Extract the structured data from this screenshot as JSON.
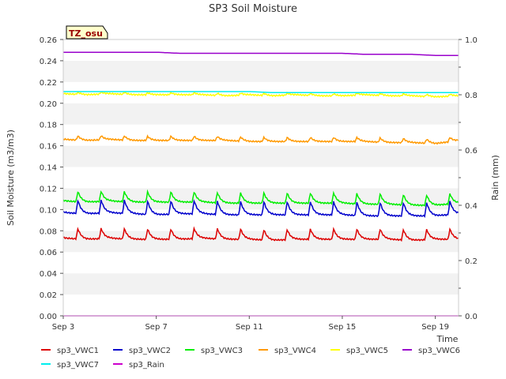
{
  "chart_data": {
    "type": "line",
    "title": "SP3 Soil Moisture",
    "xlabel": "Time",
    "ylabel": "Soil Moisture (m3/m3)",
    "y2label": "Rain (mm)",
    "annotation": "TZ_osu",
    "x_range_days": [
      0,
      17
    ],
    "x_tick_labels": [
      "Sep 3",
      "Sep 7",
      "Sep 11",
      "Sep 15",
      "Sep 19"
    ],
    "x_tick_days": [
      0,
      4,
      8,
      12,
      16
    ],
    "ylim": [
      0,
      0.26
    ],
    "y_ticks": [
      "0.00",
      "0.02",
      "0.04",
      "0.06",
      "0.08",
      "0.10",
      "0.12",
      "0.14",
      "0.16",
      "0.18",
      "0.20",
      "0.22",
      "0.24",
      "0.26"
    ],
    "y2lim": [
      0,
      1.0
    ],
    "y2_ticks": [
      "0.0",
      "0.2",
      "0.4",
      "0.6",
      "0.8",
      "1.0"
    ],
    "grid": "horizontal bands",
    "legend_position": "bottom",
    "series": [
      {
        "name": "sp3_VWC1",
        "color": "#dd0000",
        "axis": "left",
        "values": [
          0.073,
          0.072,
          0.073,
          0.072,
          0.072,
          0.072,
          0.073,
          0.072,
          0.072,
          0.071,
          0.072,
          0.072,
          0.072,
          0.072,
          0.072,
          0.071,
          0.072,
          0.072
        ],
        "daily_peak": 0.01
      },
      {
        "name": "sp3_VWC2",
        "color": "#0000cc",
        "axis": "left",
        "values": [
          0.097,
          0.096,
          0.097,
          0.096,
          0.095,
          0.096,
          0.096,
          0.095,
          0.095,
          0.095,
          0.095,
          0.095,
          0.095,
          0.094,
          0.094,
          0.094,
          0.094,
          0.096
        ],
        "daily_peak": 0.013
      },
      {
        "name": "sp3_VWC3",
        "color": "#00ee00",
        "axis": "left",
        "values": [
          0.108,
          0.107,
          0.108,
          0.107,
          0.107,
          0.107,
          0.107,
          0.106,
          0.106,
          0.106,
          0.106,
          0.106,
          0.106,
          0.105,
          0.105,
          0.104,
          0.104,
          0.106
        ],
        "daily_peak": 0.01
      },
      {
        "name": "sp3_VWC4",
        "color": "#ff9900",
        "axis": "left",
        "values": [
          0.166,
          0.165,
          0.166,
          0.165,
          0.165,
          0.165,
          0.165,
          0.165,
          0.164,
          0.164,
          0.164,
          0.164,
          0.164,
          0.164,
          0.163,
          0.163,
          0.162,
          0.165
        ],
        "daily_peak": 0.004
      },
      {
        "name": "sp3_VWC5",
        "color": "#ffff00",
        "axis": "left",
        "values": [
          0.209,
          0.208,
          0.209,
          0.208,
          0.208,
          0.208,
          0.208,
          0.207,
          0.208,
          0.207,
          0.208,
          0.207,
          0.207,
          0.208,
          0.207,
          0.207,
          0.206,
          0.207
        ],
        "daily_peak": 0.002
      },
      {
        "name": "sp3_VWC6",
        "color": "#9900cc",
        "axis": "left",
        "values": [
          0.248,
          0.248,
          0.248,
          0.248,
          0.248,
          0.247,
          0.247,
          0.247,
          0.247,
          0.247,
          0.247,
          0.247,
          0.247,
          0.246,
          0.246,
          0.246,
          0.245,
          0.245
        ],
        "daily_peak": 0.0
      },
      {
        "name": "sp3_VWC7",
        "color": "#00eeee",
        "axis": "left",
        "values": [
          0.211,
          0.211,
          0.211,
          0.211,
          0.211,
          0.211,
          0.211,
          0.211,
          0.211,
          0.21,
          0.21,
          0.21,
          0.21,
          0.21,
          0.21,
          0.21,
          0.21,
          0.21
        ],
        "daily_peak": 0.0
      },
      {
        "name": "sp3_Rain",
        "color": "#cc00cc",
        "axis": "right",
        "values": [
          0,
          0,
          0,
          0,
          0,
          0,
          0,
          0,
          0,
          0,
          0,
          0,
          0,
          0,
          0,
          0,
          0,
          0
        ],
        "daily_peak": 0
      }
    ]
  }
}
